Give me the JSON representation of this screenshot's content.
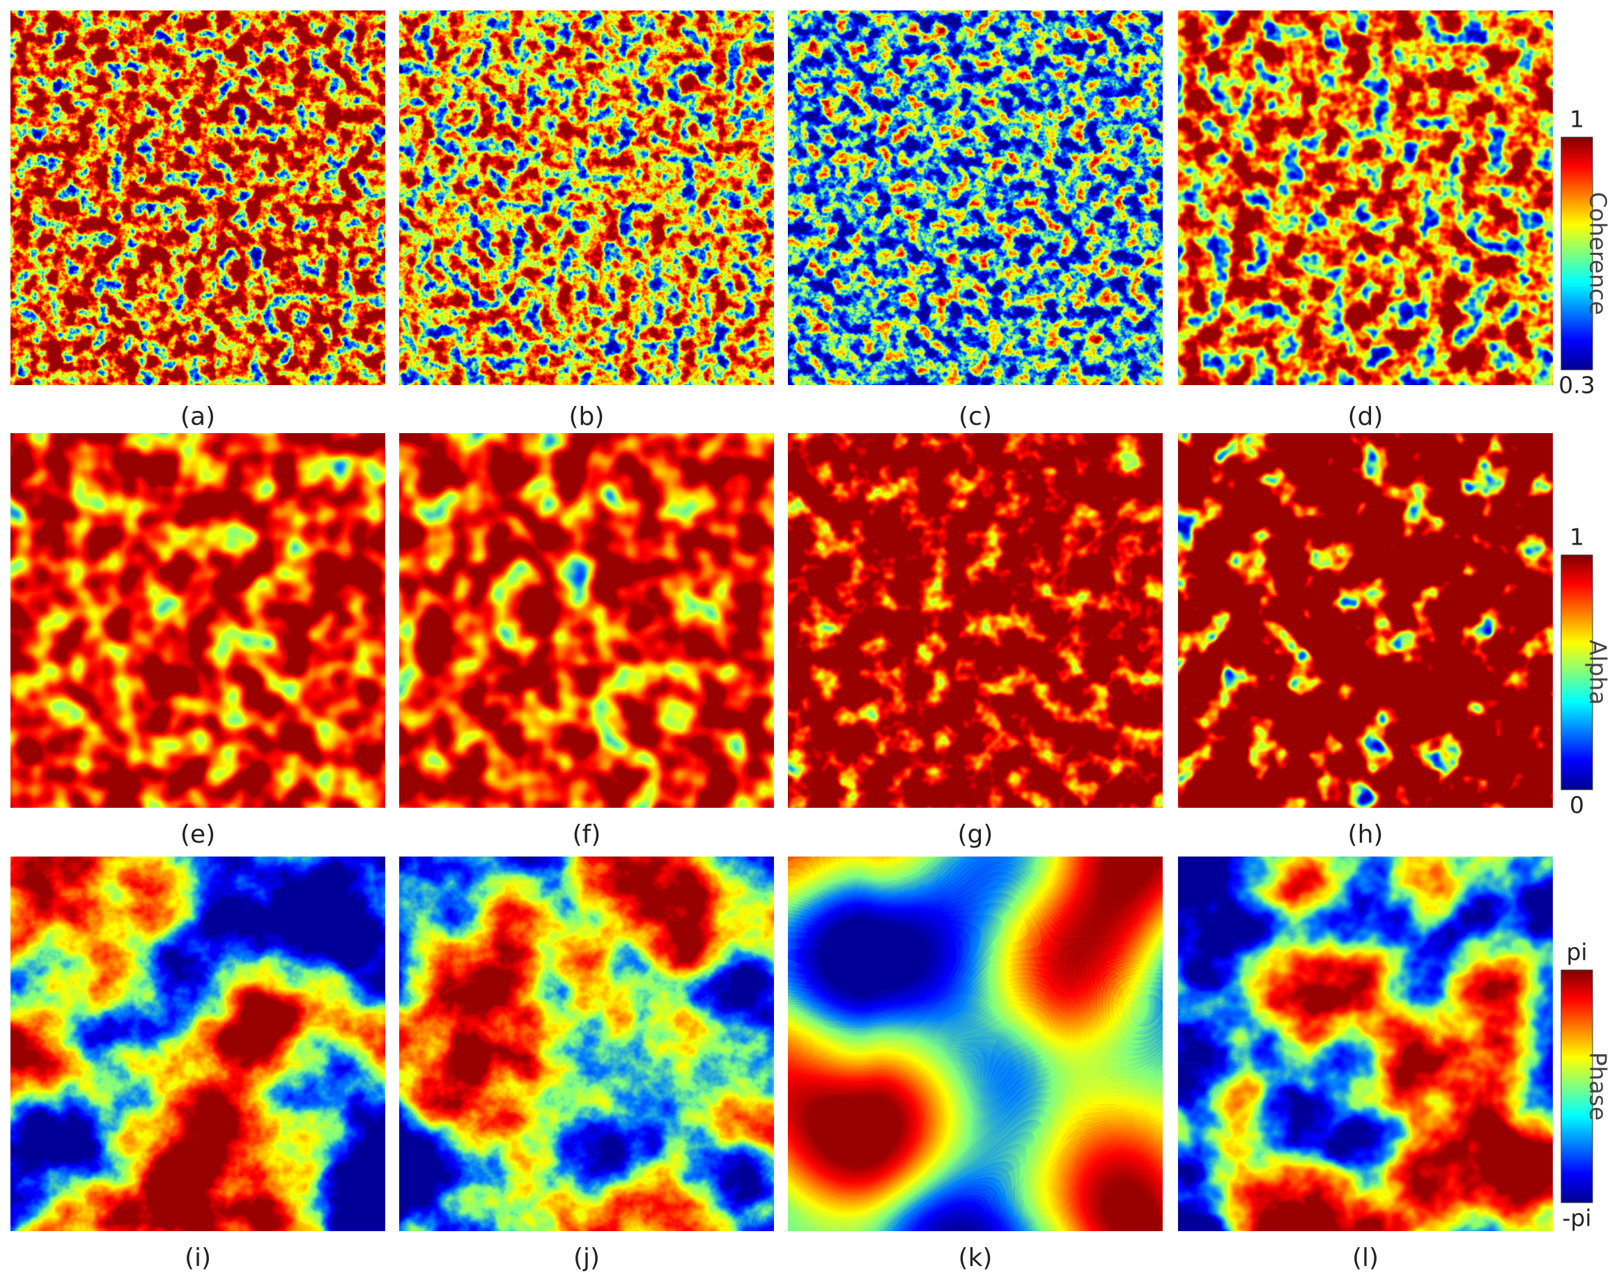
{
  "panels": [
    {
      "label": "(a)"
    },
    {
      "label": "(b)"
    },
    {
      "label": "(c)"
    },
    {
      "label": "(d)"
    },
    {
      "label": "(e)"
    },
    {
      "label": "(f)"
    },
    {
      "label": "(g)"
    },
    {
      "label": "(h)"
    },
    {
      "label": "(i)"
    },
    {
      "label": "(j)"
    },
    {
      "label": "(k)"
    },
    {
      "label": "(l)"
    }
  ],
  "colorbars": [
    {
      "top": "1",
      "title": "Coherence",
      "bottom": "0.3"
    },
    {
      "top": "1",
      "title": "Alpha",
      "bottom": "0"
    },
    {
      "top": "pi",
      "title": "Phase",
      "bottom": "-pi"
    }
  ]
}
